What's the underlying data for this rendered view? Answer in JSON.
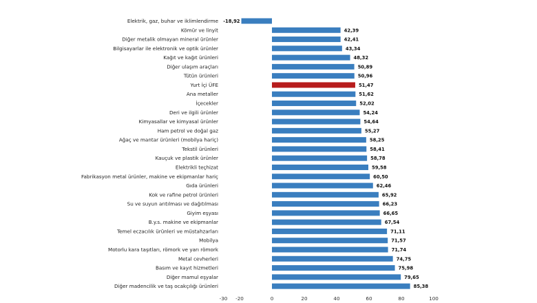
{
  "chart_data": {
    "type": "bar",
    "orientation": "horizontal",
    "title": "",
    "xlabel": "",
    "ylabel": "",
    "xlim": [
      -30,
      100
    ],
    "xticks": [
      -30,
      -20,
      0,
      20,
      40,
      60,
      80,
      100
    ],
    "grid": false,
    "legend": "none",
    "colors": {
      "default": "#3a7ebf",
      "highlight": "#b71c1c"
    },
    "categories": [
      "Elektrik, gaz, buhar ve iklimlendirme",
      "Kömür ve linyit",
      "Diğer metalik olmayan mineral ürünler",
      "Bilgisayarlar ile elektronik ve optik ürünler",
      "Kağıt ve kağıt ürünleri",
      "Diğer ulaşım araçları",
      "Tütün ürünleri",
      "Yurt İçi ÜFE",
      "Ana metaller",
      "İçecekler",
      "Deri ve ilgili ürünler",
      "Kimyasallar ve kimyasal ürünler",
      "Ham petrol ve doğal gaz",
      "Ağaç ve mantar ürünleri (mobilya hariç)",
      "Tekstil ürünleri",
      "Kauçuk ve plastik ürünler",
      "Elektrikli teçhizat",
      "Fabrikasyon metal ürünler, makine ve ekipmanlar hariç",
      "Gıda ürünleri",
      "Kok ve rafine petrol ürünleri",
      "Su ve suyun arıtılması ve dağıtılması",
      "Giyim eşyası",
      "B.y.s. makine ve ekipmanlar",
      "Temel eczacılık ürünleri ve müstahzarları",
      "Mobilya",
      "Motorlu kara taşıtları, römork ve yarı römork",
      "Metal cevherleri",
      "Basım ve kayıt hizmetleri",
      "Diğer mamul eşyalar",
      "Diğer madencilik ve taş ocakçılığı ürünleri"
    ],
    "values": [
      -18.92,
      42.39,
      42.41,
      43.34,
      48.32,
      50.89,
      50.96,
      51.47,
      51.62,
      52.02,
      54.24,
      54.64,
      55.27,
      58.25,
      58.41,
      58.78,
      59.58,
      60.5,
      62.46,
      65.92,
      66.23,
      66.65,
      67.54,
      71.11,
      71.57,
      71.74,
      74.75,
      75.98,
      79.65,
      85.38
    ],
    "value_labels": [
      "-18,92",
      "42,39",
      "42,41",
      "43,34",
      "48,32",
      "50,89",
      "50,96",
      "51,47",
      "51,62",
      "52,02",
      "54,24",
      "54,64",
      "55,27",
      "58,25",
      "58,41",
      "58,78",
      "59,58",
      "60,50",
      "62,46",
      "65,92",
      "66,23",
      "66,65",
      "67,54",
      "71,11",
      "71,57",
      "71,74",
      "74,75",
      "75,98",
      "79,65",
      "85,38"
    ],
    "highlight_index": 7
  }
}
